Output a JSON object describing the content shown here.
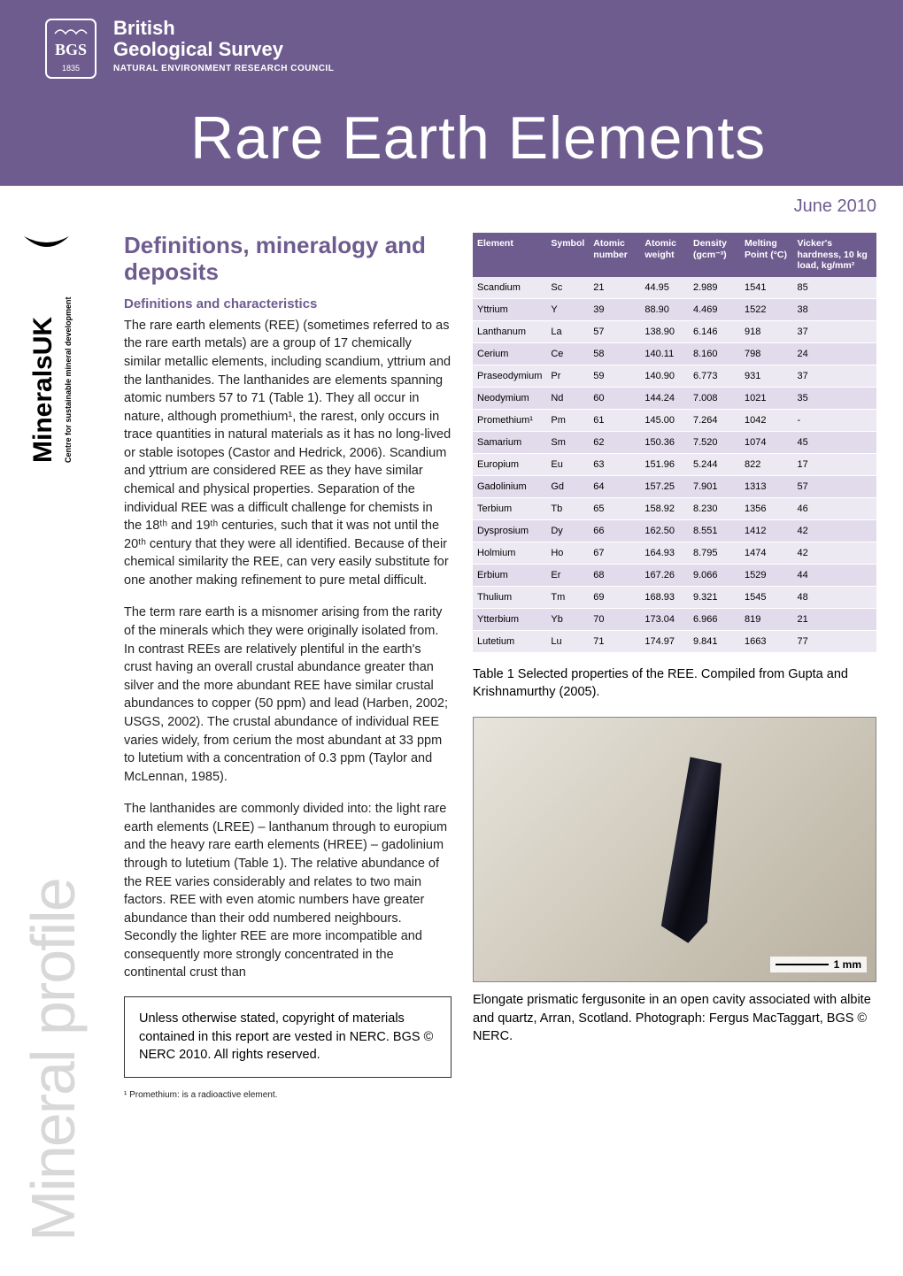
{
  "header": {
    "org_line1": "British",
    "org_line2": "Geological Survey",
    "org_sub": "NATURAL ENVIRONMENT RESEARCH COUNCIL",
    "title": "Rare Earth Elements",
    "date": "June 2010"
  },
  "sidebar": {
    "brand_main": "Minerals",
    "brand_suffix": "UK",
    "brand_sub": "Centre for sustainable mineral development",
    "series": "Mineral profile"
  },
  "section": {
    "title": "Definitions, mineralogy and deposits",
    "subtitle": "Definitions and characteristics",
    "p1": "The rare earth elements (REE) (sometimes referred to as the rare earth metals) are a group of 17 chemically similar metallic elements, including scandium, yttrium and the lanthanides. The lanthanides are elements spanning atomic numbers 57 to 71 (Table 1). They all occur in nature, although promethium¹, the rarest, only occurs in trace quantities in natural materials as it has no long-lived or stable isotopes (Castor and Hedrick, 2006). Scandium and yttrium are considered REE as they have similar chemical and physical properties. Separation of the individual REE was a difficult challenge for chemists in the 18ᵗʰ and 19ᵗʰ centuries, such that it was not until the 20ᵗʰ century that they were all identified. Because of their chemical similarity the REE, can very easily substitute for one another making refinement to pure metal difficult.",
    "p2": "The term rare earth is a misnomer arising from the rarity of the minerals which they were originally isolated from. In contrast REEs are relatively plentiful in the earth's crust having an overall crustal abundance greater than silver and the more abundant REE have similar crustal abundances to copper (50 ppm) and lead (Harben, 2002; USGS, 2002). The crustal abundance of individual REE varies widely, from cerium the most abundant at 33 ppm to lutetium with a concentration of 0.3 ppm (Taylor and McLennan, 1985).",
    "p3": "The lanthanides are commonly divided into: the light rare earth elements (LREE) – lanthanum through to europium and the heavy rare earth elements (HREE) – gadolinium through to lutetium (Table 1). The relative abundance of the REE varies considerably and relates to two main factors. REE with even atomic numbers have greater abundance than their odd numbered neighbours. Secondly the lighter REE are more incompatible and consequently more strongly concentrated in the continental crust than",
    "copyright": "Unless otherwise stated, copyright of materials contained in this report are vested in NERC. BGS © NERC 2010. All rights reserved.",
    "footnote": "¹ Promethium: is a radioactive element."
  },
  "table": {
    "headers": {
      "element": "Element",
      "symbol": "Symbol",
      "atomic_number": "Atomic number",
      "atomic_weight": "Atomic weight",
      "density": "Density (gcm⁻³)",
      "melting": "Melting Point (°C)",
      "hardness": "Vicker's hardness, 10 kg load, kg/mm²"
    },
    "rows": [
      {
        "element": "Scandium",
        "symbol": "Sc",
        "num": "21",
        "wt": "44.95",
        "den": "2.989",
        "mp": "1541",
        "hv": "85"
      },
      {
        "element": "Yttrium",
        "symbol": "Y",
        "num": "39",
        "wt": "88.90",
        "den": "4.469",
        "mp": "1522",
        "hv": "38"
      },
      {
        "element": "Lanthanum",
        "symbol": "La",
        "num": "57",
        "wt": "138.90",
        "den": "6.146",
        "mp": "918",
        "hv": "37"
      },
      {
        "element": "Cerium",
        "symbol": "Ce",
        "num": "58",
        "wt": "140.11",
        "den": "8.160",
        "mp": "798",
        "hv": "24"
      },
      {
        "element": "Praseodymium",
        "symbol": "Pr",
        "num": "59",
        "wt": "140.90",
        "den": "6.773",
        "mp": "931",
        "hv": "37"
      },
      {
        "element": "Neodymium",
        "symbol": "Nd",
        "num": "60",
        "wt": "144.24",
        "den": "7.008",
        "mp": "1021",
        "hv": "35"
      },
      {
        "element": "Promethium¹",
        "symbol": "Pm",
        "num": "61",
        "wt": "145.00",
        "den": "7.264",
        "mp": "1042",
        "hv": "-"
      },
      {
        "element": "Samarium",
        "symbol": "Sm",
        "num": "62",
        "wt": "150.36",
        "den": "7.520",
        "mp": "1074",
        "hv": "45"
      },
      {
        "element": "Europium",
        "symbol": "Eu",
        "num": "63",
        "wt": "151.96",
        "den": "5.244",
        "mp": "822",
        "hv": "17"
      },
      {
        "element": "Gadolinium",
        "symbol": "Gd",
        "num": "64",
        "wt": "157.25",
        "den": "7.901",
        "mp": "1313",
        "hv": "57"
      },
      {
        "element": "Terbium",
        "symbol": "Tb",
        "num": "65",
        "wt": "158.92",
        "den": "8.230",
        "mp": "1356",
        "hv": "46"
      },
      {
        "element": "Dysprosium",
        "symbol": "Dy",
        "num": "66",
        "wt": "162.50",
        "den": "8.551",
        "mp": "1412",
        "hv": "42"
      },
      {
        "element": "Holmium",
        "symbol": "Ho",
        "num": "67",
        "wt": "164.93",
        "den": "8.795",
        "mp": "1474",
        "hv": "42"
      },
      {
        "element": "Erbium",
        "symbol": "Er",
        "num": "68",
        "wt": "167.26",
        "den": "9.066",
        "mp": "1529",
        "hv": "44"
      },
      {
        "element": "Thulium",
        "symbol": "Tm",
        "num": "69",
        "wt": "168.93",
        "den": "9.321",
        "mp": "1545",
        "hv": "48"
      },
      {
        "element": "Ytterbium",
        "symbol": "Yb",
        "num": "70",
        "wt": "173.04",
        "den": "6.966",
        "mp": "819",
        "hv": "21"
      },
      {
        "element": "Lutetium",
        "symbol": "Lu",
        "num": "71",
        "wt": "174.97",
        "den": "9.841",
        "mp": "1663",
        "hv": "77"
      }
    ],
    "caption": "Table 1    Selected properties of the REE. Compiled from Gupta and Krishnamurthy (2005)."
  },
  "photo": {
    "scale_label": "1 mm",
    "caption": "Elongate prismatic fergusonite in an open cavity associated with albite and quartz, Arran, Scotland. Photograph: Fergus MacTaggart, BGS © NERC."
  },
  "colors": {
    "brand_purple": "#6e5c8f",
    "table_row_light": "#ede9f2",
    "table_row_dark": "#e2dbec",
    "side_grey": "#d8d8d8"
  }
}
